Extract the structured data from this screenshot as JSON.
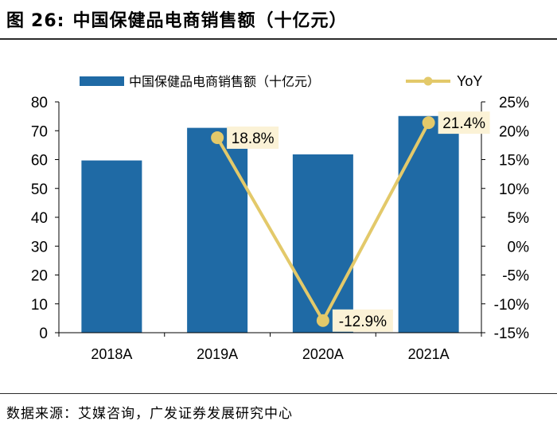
{
  "figure": {
    "label": "图",
    "number": "26:",
    "title": "中国保健品电商销售额（十亿元）"
  },
  "source": "数据来源：艾媒咨询，广发证券发展研究中心",
  "colors": {
    "bar": "#1f6aa5",
    "line": "#e3c96a",
    "label_bg": "#fbf2d6",
    "axis": "#000000"
  },
  "chart_data": {
    "type": "bar",
    "categories": [
      "2018A",
      "2019A",
      "2020A",
      "2021A"
    ],
    "series": [
      {
        "name": "中国保健品电商销售额（十亿元）",
        "type": "bar",
        "axis": "left",
        "values": [
          59.7,
          71.0,
          61.8,
          75.1
        ]
      },
      {
        "name": "YoY",
        "type": "line",
        "axis": "right",
        "values": [
          null,
          18.8,
          -12.9,
          21.4
        ],
        "labels": [
          "",
          "18.8%",
          "-12.9%",
          "21.4%"
        ]
      }
    ],
    "y_left": {
      "min": 0,
      "max": 80,
      "ticks": [
        0,
        10,
        20,
        30,
        40,
        50,
        60,
        70,
        80
      ]
    },
    "y_right": {
      "min": -15,
      "max": 25,
      "ticks": [
        -15,
        -10,
        -5,
        0,
        5,
        10,
        15,
        20,
        25
      ],
      "tick_labels": [
        "-15%",
        "-10%",
        "-5%",
        "0%",
        "5%",
        "10%",
        "15%",
        "20%",
        "25%"
      ]
    },
    "grid": false,
    "legend_position": "top"
  }
}
